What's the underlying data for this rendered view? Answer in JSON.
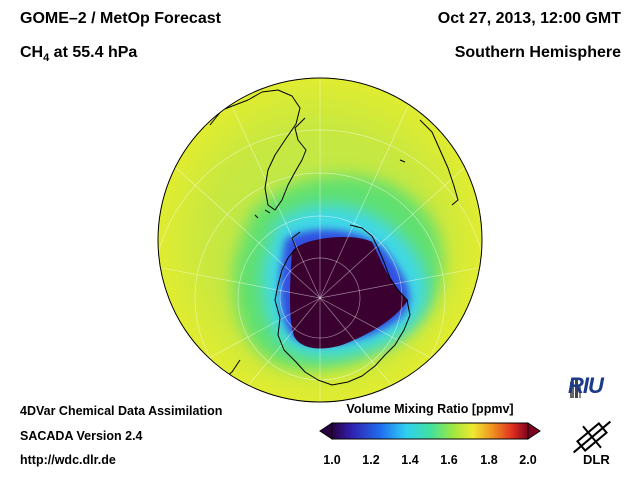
{
  "header": {
    "title_left": "GOME–2 / MetOp Forecast",
    "species": "CH",
    "species_sub": "4",
    "level": " at 55.4 hPa",
    "datetime": "Oct 27, 2013, 12:00 GMT",
    "region": "Southern Hemisphere"
  },
  "footer": {
    "line1": "4DVar Chemical Data Assimilation",
    "line2": "SACADA Version 2.4",
    "line3": "http://wdc.dlr.de"
  },
  "colorbar": {
    "title": "Volume Mixing Ratio [ppmv]",
    "ticks": [
      "1.0",
      "1.2",
      "1.4",
      "1.6",
      "1.8",
      "2.0"
    ],
    "min": 1.0,
    "max": 2.0,
    "colors": [
      "#2a0040",
      "#3020b0",
      "#2070f0",
      "#30d0f0",
      "#40e0a0",
      "#a0e840",
      "#f0e830",
      "#f09020",
      "#e03020",
      "#800020"
    ]
  },
  "logos": {
    "riu": "RIU",
    "dlr": "DLR"
  }
}
